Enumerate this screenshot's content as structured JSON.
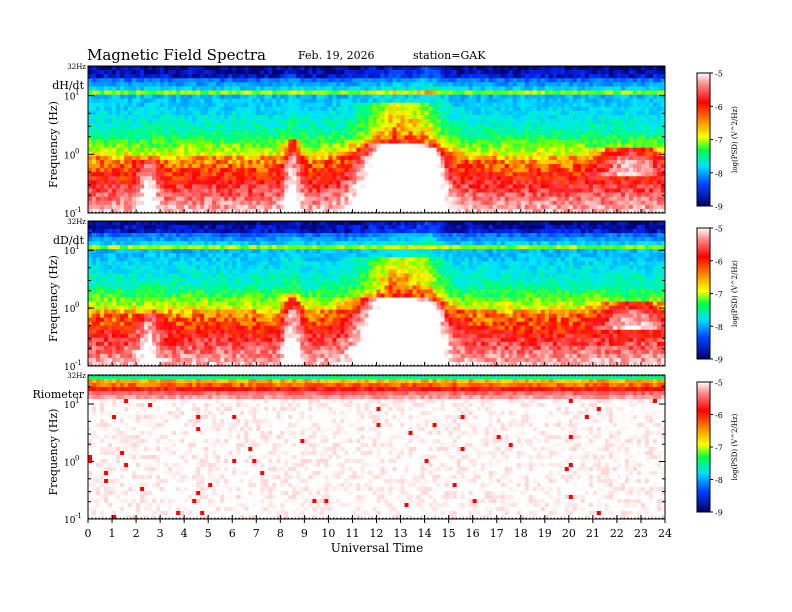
{
  "header": {
    "title": "Magnetic Field Spectra",
    "date": "Feb. 19, 2026",
    "station": "station=GAK"
  },
  "chart_data": [
    {
      "type": "heatmap",
      "panel_label": "dH/dt",
      "ylabel": "Frequency (Hz)",
      "top_label": "32Hz",
      "y_tick_labels": [
        "10",
        "10",
        "10"
      ],
      "y_tick_exponents": [
        "1",
        "0",
        "-1"
      ],
      "ylim": [
        0.1,
        32
      ],
      "y_scale": "log",
      "colorbar": {
        "label": "log(PSD) (V^2/Hz)",
        "ticks": [
          "-5",
          "-6",
          "-7",
          "-8",
          "-9"
        ],
        "range": [
          -9,
          -5
        ]
      }
    },
    {
      "type": "heatmap",
      "panel_label": "dD/dt",
      "ylabel": "Frequency (Hz)",
      "top_label": "32Hz",
      "y_tick_labels": [
        "10",
        "10",
        "10"
      ],
      "y_tick_exponents": [
        "1",
        "0",
        "-1"
      ],
      "ylim": [
        0.1,
        32
      ],
      "y_scale": "log",
      "colorbar": {
        "label": "log(PSD) (V^2/Hz)",
        "ticks": [
          "-5",
          "-6",
          "-7",
          "-8",
          "-9"
        ],
        "range": [
          -9,
          -5
        ]
      }
    },
    {
      "type": "heatmap",
      "panel_label": "Riometer",
      "ylabel": "Frequency (Hz)",
      "top_label": "32Hz",
      "y_tick_labels": [
        "10",
        "10",
        "10"
      ],
      "y_tick_exponents": [
        "1",
        "0",
        "-1"
      ],
      "ylim": [
        0.1,
        32
      ],
      "y_scale": "log",
      "colorbar": {
        "label": "log(PSD) (V^2/Hz)",
        "ticks": [
          "-5",
          "-6",
          "-7",
          "-8",
          "-9"
        ],
        "range": [
          -9,
          -5
        ]
      }
    }
  ],
  "x_axis": {
    "label": "Universal Time",
    "ticks": [
      "0",
      "1",
      "2",
      "3",
      "4",
      "5",
      "6",
      "7",
      "8",
      "9",
      "10",
      "11",
      "12",
      "13",
      "14",
      "15",
      "16",
      "17",
      "18",
      "19",
      "20",
      "21",
      "22",
      "23",
      "24"
    ],
    "range": [
      0,
      24
    ]
  },
  "colors": {
    "colormap": [
      "#000080",
      "#0030ff",
      "#00c8ff",
      "#00ff80",
      "#90ff00",
      "#ffff00",
      "#ff8000",
      "#ff0000",
      "#ffffff"
    ]
  }
}
